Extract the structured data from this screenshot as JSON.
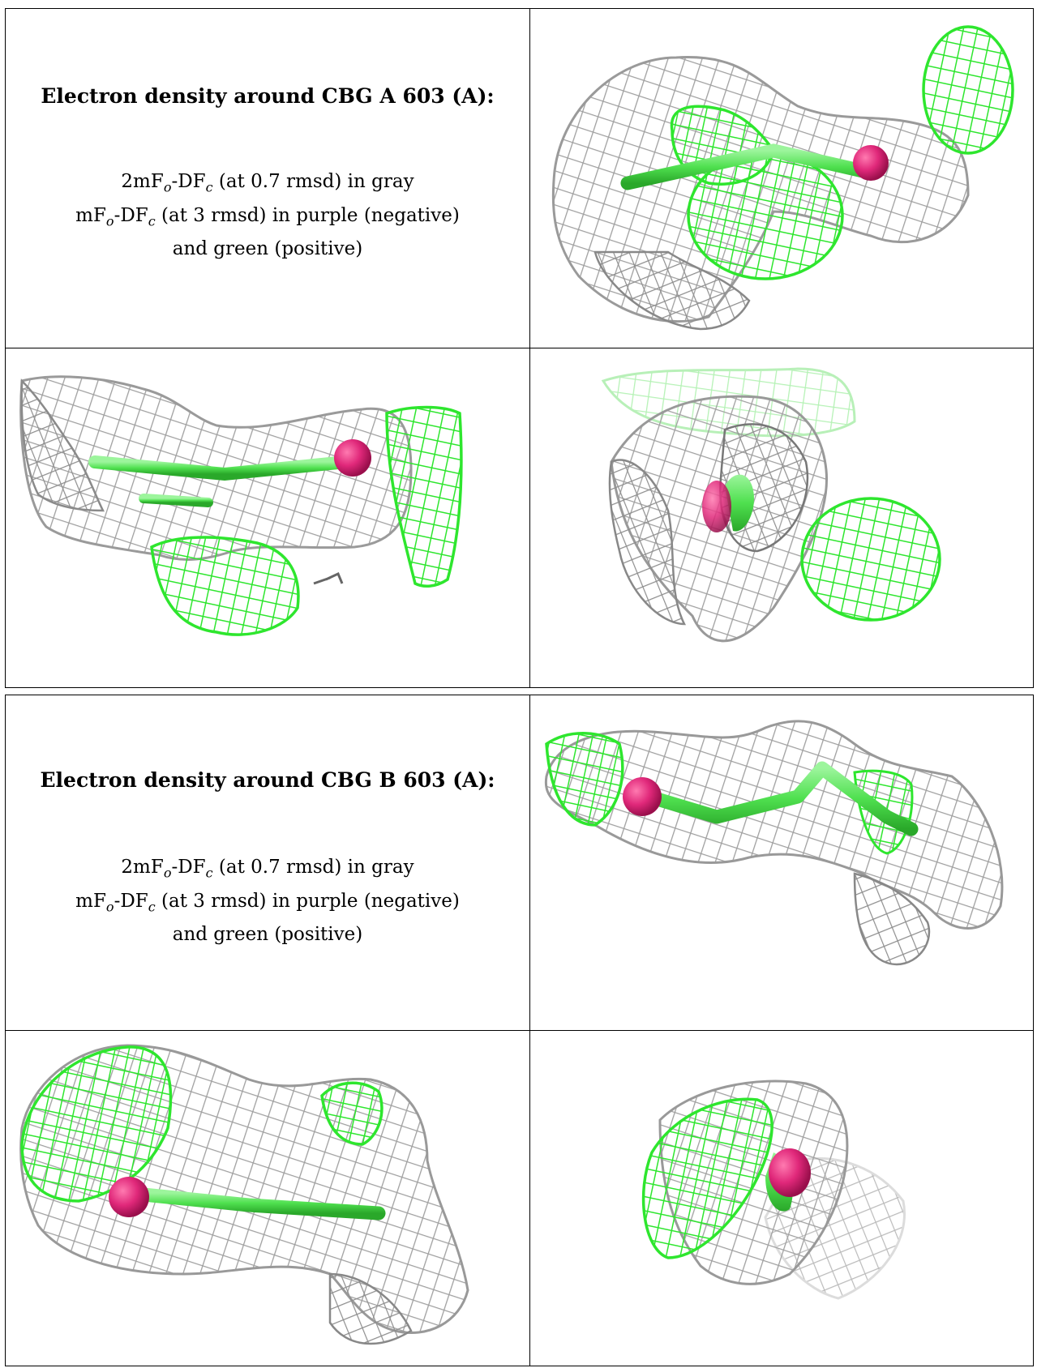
{
  "blocks": [
    {
      "title": "Electron density around CBG A 603 (A):",
      "legend": {
        "line1_prefix": "2mF",
        "line1_sub1": "o",
        "line1_mid": "-DF",
        "line1_sub2": "c",
        "line1_suffix": " (at 0.7 rmsd) in gray",
        "line2_prefix": "mF",
        "line2_sub1": "o",
        "line2_mid": "-DF",
        "line2_sub2": "c",
        "line2_suffix": " (at 3 rmsd) in purple (negative)",
        "line3": "and green (positive)"
      }
    },
    {
      "title": "Electron density around CBG B 603 (A):",
      "legend": {
        "line1_prefix": "2mF",
        "line1_sub1": "o",
        "line1_mid": "-DF",
        "line1_sub2": "c",
        "line1_suffix": " (at 0.7 rmsd) in gray",
        "line2_prefix": "mF",
        "line2_sub1": "o",
        "line2_mid": "-DF",
        "line2_sub2": "c",
        "line2_suffix": " (at 3 rmsd) in purple (negative)",
        "line3": "and green (positive)"
      }
    }
  ],
  "colors": {
    "map_gray": "#8a8a8a",
    "map_green": "#33e633",
    "ligand_green": "#5ae65a",
    "atom_magenta": "#e0287a"
  },
  "images": [
    "density-view-a-1",
    "density-view-a-2",
    "density-view-a-3",
    "density-view-b-1",
    "density-view-b-2",
    "density-view-b-3"
  ]
}
